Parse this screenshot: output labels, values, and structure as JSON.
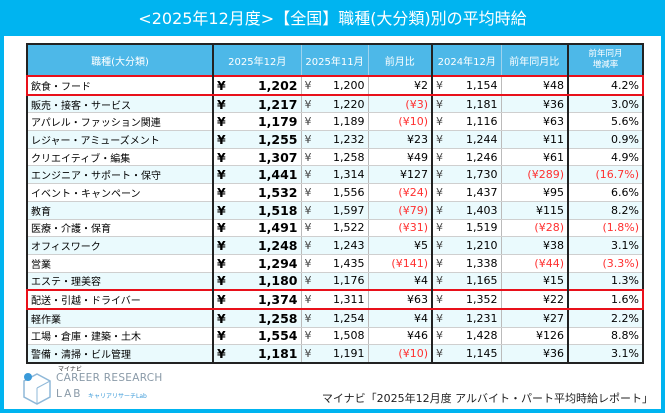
{
  "title": "<2025年12月度>【全国】職種(大分類)別の平均時給",
  "headers": [
    "職種(大分類)",
    "2025年12月",
    "2025年11月",
    "前月比",
    "2024年12月",
    "前年同月比",
    "前年同月\n増減率"
  ],
  "rows": [
    [
      "飲食・フード",
      "1,202",
      "1,200",
      "¥2",
      "1,154",
      "¥48",
      "4.2%"
    ],
    [
      "販売・接客・サービス",
      "1,217",
      "1,220",
      "(¥3)",
      "1,181",
      "¥36",
      "3.0%"
    ],
    [
      "アパレル・ファッション関連",
      "1,179",
      "1,189",
      "(¥10)",
      "1,116",
      "¥63",
      "5.6%"
    ],
    [
      "レジャー・アミューズメント",
      "1,255",
      "1,232",
      "¥23",
      "1,244",
      "¥11",
      "0.9%"
    ],
    [
      "クリエイティブ・編集",
      "1,307",
      "1,258",
      "¥49",
      "1,246",
      "¥61",
      "4.9%"
    ],
    [
      "エンジニア・サポート・保守",
      "1,441",
      "1,314",
      "¥127",
      "1,730",
      "(¥289)",
      "(16.7%)"
    ],
    [
      "イベント・キャンペーン",
      "1,532",
      "1,556",
      "(¥24)",
      "1,437",
      "¥95",
      "6.6%"
    ],
    [
      "教育",
      "1,518",
      "1,597",
      "(¥79)",
      "1,403",
      "¥115",
      "8.2%"
    ],
    [
      "医療・介護・保育",
      "1,491",
      "1,522",
      "(¥31)",
      "1,519",
      "(¥28)",
      "(1.8%)"
    ],
    [
      "オフィスワーク",
      "1,248",
      "1,243",
      "¥5",
      "1,210",
      "¥38",
      "3.1%"
    ],
    [
      "営業",
      "1,294",
      "1,435",
      "(¥141)",
      "1,338",
      "(¥44)",
      "(3.3%)"
    ],
    [
      "エステ・理美容",
      "1,180",
      "1,176",
      "¥4",
      "1,165",
      "¥15",
      "1.3%"
    ],
    [
      "配送・引越・ドライバー",
      "1,374",
      "1,311",
      "¥63",
      "1,352",
      "¥22",
      "1.6%"
    ],
    [
      "軽作業",
      "1,258",
      "1,254",
      "¥4",
      "1,231",
      "¥27",
      "2.2%"
    ],
    [
      "工場・倉庫・建築・土木",
      "1,554",
      "1,508",
      "¥46",
      "1,428",
      "¥126",
      "8.8%"
    ],
    [
      "警備・清掃・ビル管理",
      "1,181",
      "1,191",
      "(¥10)",
      "1,145",
      "¥36",
      "3.1%"
    ]
  ],
  "highlighted_rows": [
    0,
    12
  ],
  "currency_symbol": "¥",
  "logo": {
    "small": "マイナビ",
    "line1": "CAREER RESEARCH",
    "line2": "LAB",
    "sub": "キャリアリサーチLab"
  },
  "citation": "マイナビ「2025年12月度 アルバイト・パート平均時給レポート」",
  "colors": {
    "frame": "#00b4f0",
    "header": "#4db8e8",
    "negative": "#ff3030",
    "highlight": "#e8101a"
  }
}
